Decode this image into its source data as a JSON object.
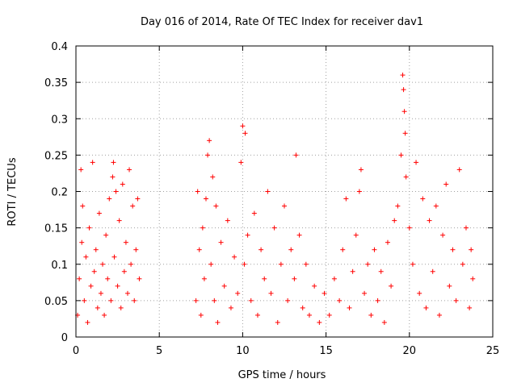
{
  "chart_data": {
    "type": "scatter",
    "title": "Day 016 of 2014, Rate Of TEC Index for receiver dav1",
    "xlabel": "GPS time / hours",
    "ylabel": "ROTI / TECUs",
    "xlim": [
      0,
      25
    ],
    "ylim": [
      0,
      0.4
    ],
    "xticks": [
      0,
      5,
      10,
      15,
      20,
      25
    ],
    "xtick_labels": [
      "0",
      "5",
      "10",
      "15",
      "20",
      "25"
    ],
    "yticks": [
      0,
      0.05,
      0.1,
      0.15,
      0.2,
      0.25,
      0.3,
      0.35,
      0.4
    ],
    "ytick_labels": [
      "0",
      "0.05",
      "0.1",
      "0.15",
      "0.2",
      "0.25",
      "0.3",
      "0.35",
      "0.4"
    ],
    "grid": true,
    "marker": "+",
    "color": "#ff0000",
    "series": [
      {
        "name": "ROTI",
        "points": [
          [
            0.1,
            0.03
          ],
          [
            0.2,
            0.08
          ],
          [
            0.3,
            0.23
          ],
          [
            0.35,
            0.13
          ],
          [
            0.4,
            0.18
          ],
          [
            0.5,
            0.05
          ],
          [
            0.6,
            0.11
          ],
          [
            0.7,
            0.02
          ],
          [
            0.8,
            0.15
          ],
          [
            0.9,
            0.07
          ],
          [
            1.0,
            0.24
          ],
          [
            1.1,
            0.09
          ],
          [
            1.2,
            0.12
          ],
          [
            1.3,
            0.04
          ],
          [
            1.4,
            0.17
          ],
          [
            1.5,
            0.06
          ],
          [
            1.6,
            0.1
          ],
          [
            1.7,
            0.03
          ],
          [
            1.8,
            0.14
          ],
          [
            1.9,
            0.08
          ],
          [
            2.0,
            0.19
          ],
          [
            2.1,
            0.05
          ],
          [
            2.2,
            0.22
          ],
          [
            2.25,
            0.24
          ],
          [
            2.3,
            0.11
          ],
          [
            2.4,
            0.2
          ],
          [
            2.5,
            0.07
          ],
          [
            2.6,
            0.16
          ],
          [
            2.7,
            0.04
          ],
          [
            2.8,
            0.21
          ],
          [
            2.9,
            0.09
          ],
          [
            3.0,
            0.13
          ],
          [
            3.1,
            0.06
          ],
          [
            3.2,
            0.23
          ],
          [
            3.3,
            0.1
          ],
          [
            3.4,
            0.18
          ],
          [
            3.5,
            0.05
          ],
          [
            3.6,
            0.12
          ],
          [
            3.7,
            0.19
          ],
          [
            3.8,
            0.08
          ],
          [
            7.2,
            0.05
          ],
          [
            7.3,
            0.2
          ],
          [
            7.4,
            0.12
          ],
          [
            7.5,
            0.03
          ],
          [
            7.6,
            0.15
          ],
          [
            7.7,
            0.08
          ],
          [
            7.8,
            0.19
          ],
          [
            7.9,
            0.25
          ],
          [
            8.0,
            0.27
          ],
          [
            8.1,
            0.1
          ],
          [
            8.2,
            0.22
          ],
          [
            8.3,
            0.05
          ],
          [
            8.4,
            0.18
          ],
          [
            8.5,
            0.02
          ],
          [
            8.7,
            0.13
          ],
          [
            8.9,
            0.07
          ],
          [
            9.1,
            0.16
          ],
          [
            9.3,
            0.04
          ],
          [
            9.5,
            0.11
          ],
          [
            9.7,
            0.06
          ],
          [
            9.9,
            0.24
          ],
          [
            10.0,
            0.29
          ],
          [
            10.1,
            0.1
          ],
          [
            10.15,
            0.28
          ],
          [
            10.3,
            0.14
          ],
          [
            10.5,
            0.05
          ],
          [
            10.7,
            0.17
          ],
          [
            10.9,
            0.03
          ],
          [
            11.1,
            0.12
          ],
          [
            11.3,
            0.08
          ],
          [
            11.5,
            0.2
          ],
          [
            11.7,
            0.06
          ],
          [
            11.9,
            0.15
          ],
          [
            12.1,
            0.02
          ],
          [
            12.3,
            0.1
          ],
          [
            12.5,
            0.18
          ],
          [
            12.7,
            0.05
          ],
          [
            12.9,
            0.12
          ],
          [
            13.1,
            0.08
          ],
          [
            13.2,
            0.25
          ],
          [
            13.4,
            0.14
          ],
          [
            13.6,
            0.04
          ],
          [
            13.8,
            0.1
          ],
          [
            14.0,
            0.03
          ],
          [
            14.3,
            0.07
          ],
          [
            14.6,
            0.02
          ],
          [
            14.9,
            0.06
          ],
          [
            15.2,
            0.03
          ],
          [
            15.5,
            0.08
          ],
          [
            15.8,
            0.05
          ],
          [
            16.0,
            0.12
          ],
          [
            16.2,
            0.19
          ],
          [
            16.4,
            0.04
          ],
          [
            16.6,
            0.09
          ],
          [
            16.8,
            0.14
          ],
          [
            17.0,
            0.2
          ],
          [
            17.1,
            0.23
          ],
          [
            17.3,
            0.06
          ],
          [
            17.5,
            0.1
          ],
          [
            17.7,
            0.03
          ],
          [
            17.9,
            0.12
          ],
          [
            18.1,
            0.05
          ],
          [
            18.3,
            0.09
          ],
          [
            18.5,
            0.02
          ],
          [
            18.7,
            0.13
          ],
          [
            18.9,
            0.07
          ],
          [
            19.1,
            0.16
          ],
          [
            19.3,
            0.18
          ],
          [
            19.5,
            0.25
          ],
          [
            19.6,
            0.36
          ],
          [
            19.65,
            0.34
          ],
          [
            19.7,
            0.31
          ],
          [
            19.75,
            0.28
          ],
          [
            19.8,
            0.22
          ],
          [
            20.0,
            0.15
          ],
          [
            20.2,
            0.1
          ],
          [
            20.4,
            0.24
          ],
          [
            20.6,
            0.06
          ],
          [
            20.8,
            0.19
          ],
          [
            21.0,
            0.04
          ],
          [
            21.2,
            0.16
          ],
          [
            21.4,
            0.09
          ],
          [
            21.6,
            0.18
          ],
          [
            21.8,
            0.03
          ],
          [
            22.0,
            0.14
          ],
          [
            22.2,
            0.21
          ],
          [
            22.4,
            0.07
          ],
          [
            22.6,
            0.12
          ],
          [
            22.8,
            0.05
          ],
          [
            23.0,
            0.23
          ],
          [
            23.2,
            0.1
          ],
          [
            23.4,
            0.15
          ],
          [
            23.6,
            0.04
          ],
          [
            23.7,
            0.12
          ],
          [
            23.8,
            0.08
          ]
        ]
      }
    ]
  }
}
